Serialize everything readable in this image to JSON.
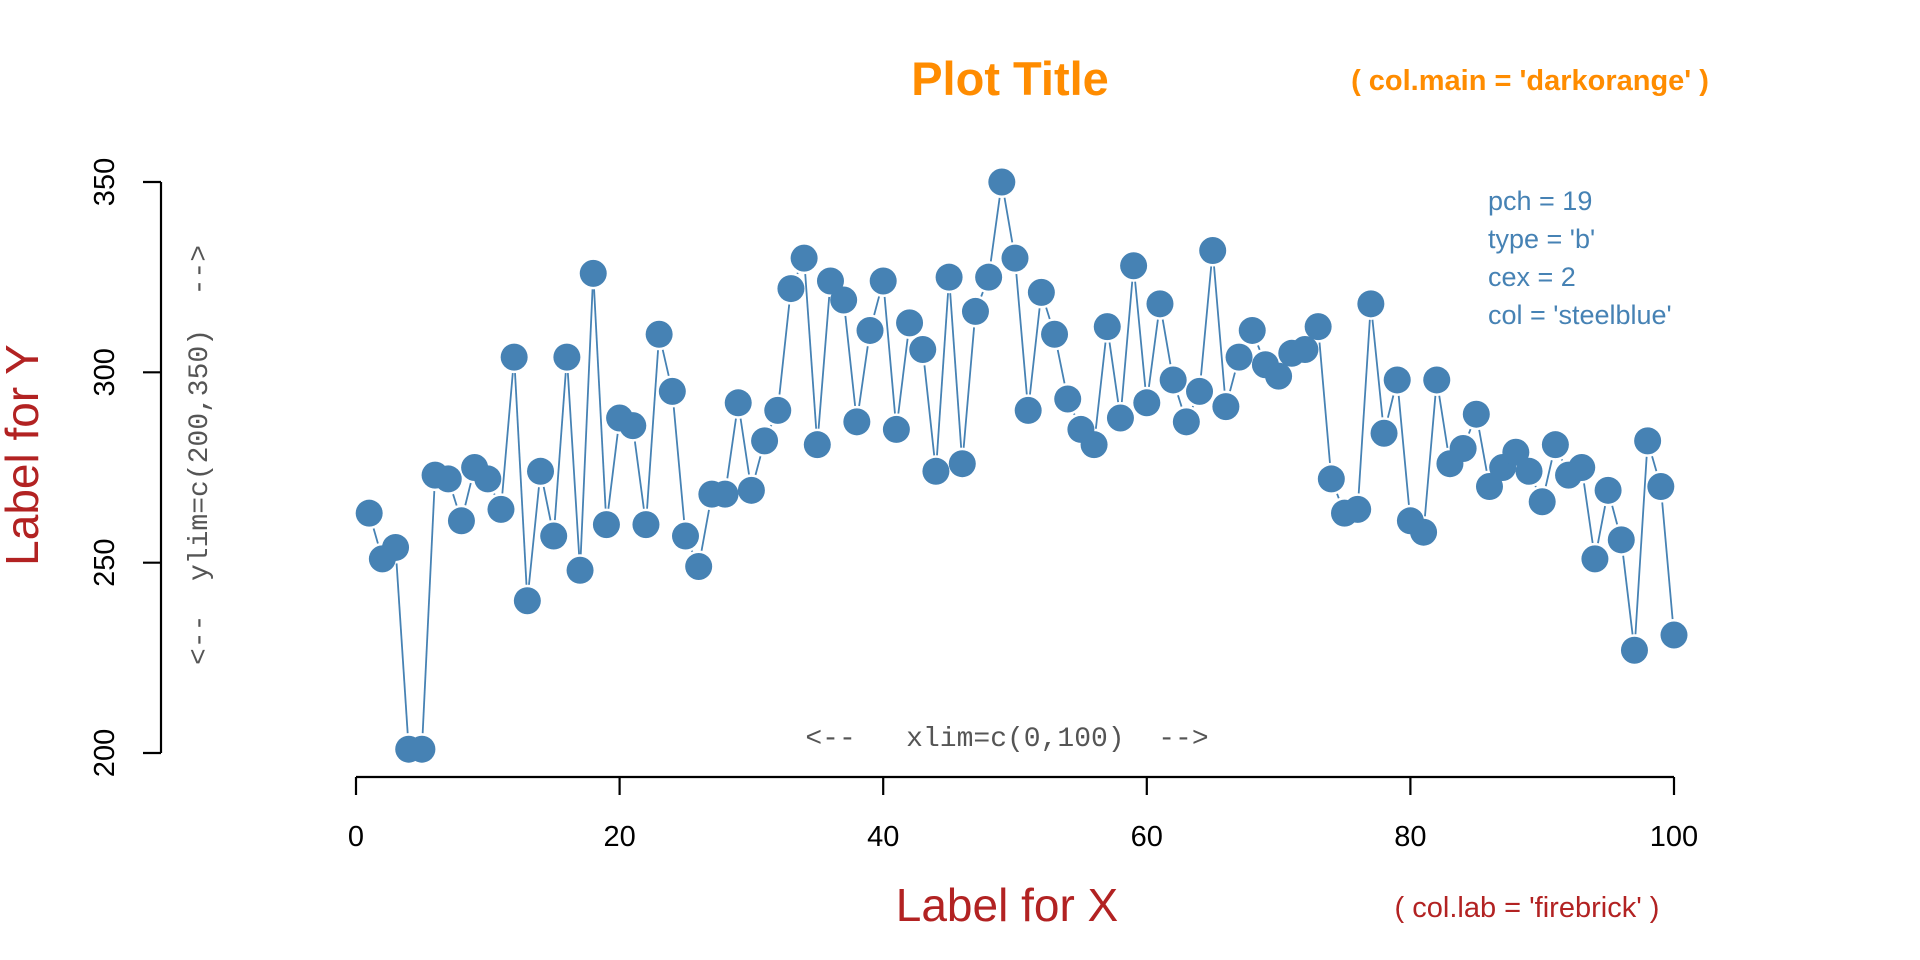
{
  "chart_data": {
    "type": "line",
    "title": "Plot Title",
    "xlabel": "Label for X",
    "ylabel": "Label for Y",
    "xlim": [
      0,
      100
    ],
    "ylim": [
      200,
      350
    ],
    "x_ticks": [
      0,
      20,
      40,
      60,
      80,
      100
    ],
    "y_ticks": [
      200,
      250,
      300,
      350
    ],
    "grid": false,
    "colors": {
      "title": "#ff8c00",
      "labels": "#b22222",
      "series": "#4682b4",
      "axes": "#000000",
      "annotation": "#555555"
    },
    "annotations": {
      "title_note": "( col.main = 'darkorange' )",
      "label_note": "( col.lab = 'firebrick' )",
      "xlim_note": "<--   xlim=c(0,100)  -->",
      "ylim_note": "<--  ylim=c(200,350)  -->",
      "params": [
        "pch = 19",
        "type = 'b'",
        "cex = 2",
        "col = 'steelblue'"
      ]
    },
    "series": [
      {
        "x": [
          1,
          2,
          3,
          4,
          5,
          6,
          7,
          8,
          9,
          10,
          11,
          12,
          13,
          14,
          15,
          16,
          17,
          18,
          19,
          20,
          21,
          22,
          23,
          24,
          25,
          26,
          27,
          28,
          29,
          30,
          31,
          32,
          33,
          34,
          35,
          36,
          37,
          38,
          39,
          40,
          41,
          42,
          43,
          44,
          45,
          46,
          47,
          48,
          49,
          50,
          51,
          52,
          53,
          54,
          55,
          56,
          57,
          58,
          59,
          60,
          61,
          62,
          63,
          64,
          65,
          66,
          67,
          68,
          69,
          70,
          71,
          72,
          73,
          74,
          75,
          76,
          77,
          78,
          79,
          80,
          81,
          82,
          83,
          84,
          85,
          86,
          87,
          88,
          89,
          90,
          91,
          92,
          93,
          94,
          95,
          96,
          97,
          98,
          99,
          100
        ],
        "values": [
          263,
          251,
          254,
          201,
          201,
          273,
          272,
          261,
          275,
          272,
          264,
          304,
          240,
          274,
          257,
          304,
          248,
          326,
          260,
          288,
          286,
          260,
          310,
          295,
          257,
          249,
          268,
          268,
          292,
          269,
          282,
          290,
          322,
          330,
          281,
          324,
          319,
          287,
          311,
          324,
          285,
          313,
          306,
          274,
          325,
          276,
          316,
          325,
          350,
          330,
          290,
          321,
          310,
          293,
          285,
          281,
          312,
          288,
          328,
          292,
          318,
          298,
          287,
          295,
          332,
          291,
          304,
          311,
          302,
          299,
          305,
          306,
          312,
          272,
          263,
          264,
          318,
          284,
          298,
          261,
          258,
          298,
          276,
          280,
          289,
          270,
          275,
          279,
          274,
          266,
          281,
          273,
          275,
          251,
          269,
          256,
          227,
          282,
          270,
          231
        ]
      }
    ]
  }
}
